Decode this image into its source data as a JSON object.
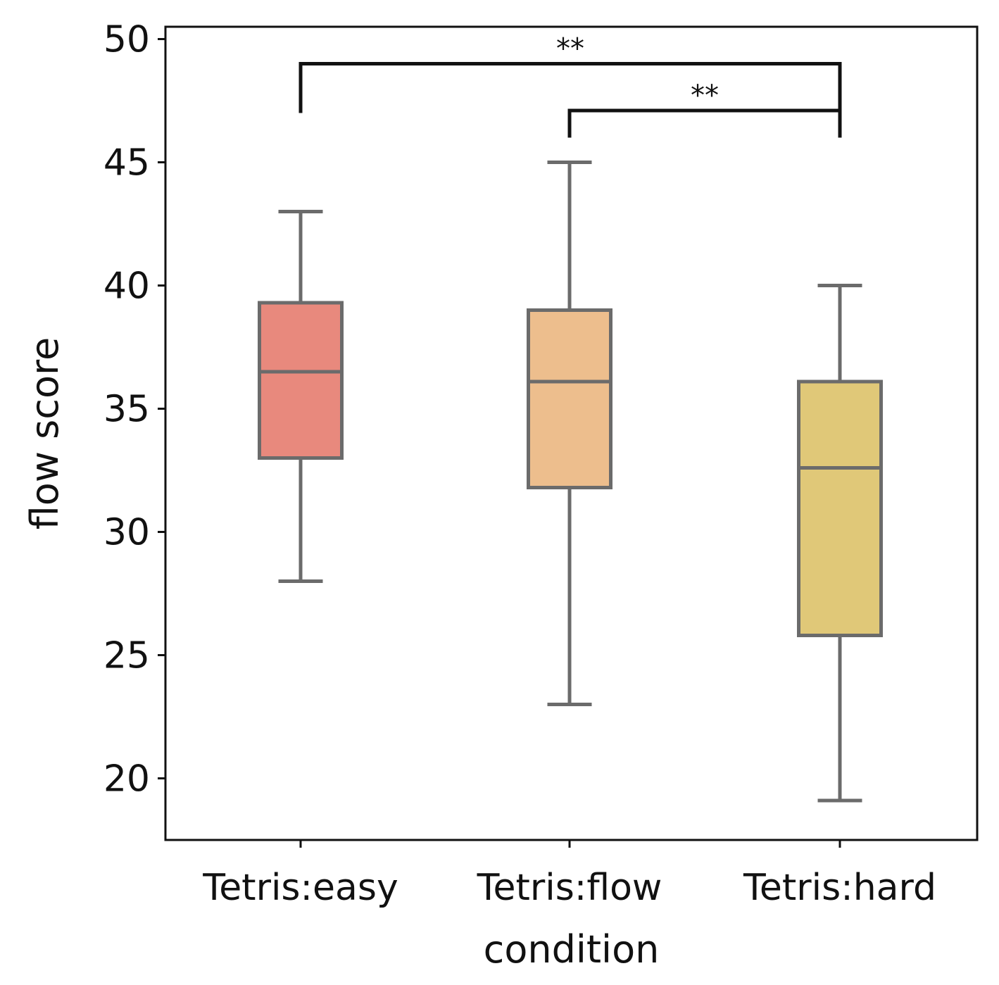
{
  "chart_data": {
    "type": "box",
    "title": "",
    "xlabel": "condition",
    "ylabel": "flow score",
    "ylim": [
      17.5,
      50.5
    ],
    "yticks": [
      20,
      25,
      30,
      35,
      40,
      45,
      50
    ],
    "categories": [
      "Tetris:easy",
      "Tetris:flow",
      "Tetris:hard"
    ],
    "series": [
      {
        "category": "Tetris:easy",
        "whisker_low": 28,
        "q1": 33,
        "median": 36.5,
        "q3": 39.3,
        "whisker_high": 43,
        "color": "#E8897D"
      },
      {
        "category": "Tetris:flow",
        "whisker_low": 23,
        "q1": 31.8,
        "median": 36.1,
        "q3": 39,
        "whisker_high": 45,
        "color": "#EDBE8D"
      },
      {
        "category": "Tetris:hard",
        "whisker_low": 19.1,
        "q1": 25.8,
        "median": 32.6,
        "q3": 36.1,
        "whisker_high": 40,
        "color": "#E0C878"
      }
    ],
    "significance": [
      {
        "from": "Tetris:easy",
        "to": "Tetris:hard",
        "label": "**",
        "start_y": 47,
        "bar_y": 49
      },
      {
        "from": "Tetris:flow",
        "to": "Tetris:hard",
        "label": "**",
        "start_y": 46,
        "bar_y": 47.1
      }
    ],
    "grid": false,
    "legend": "none",
    "colors": {
      "axis": "#111111",
      "box_edge": "#6b6b6b",
      "annotation": "#111111",
      "background": "#ffffff"
    }
  }
}
